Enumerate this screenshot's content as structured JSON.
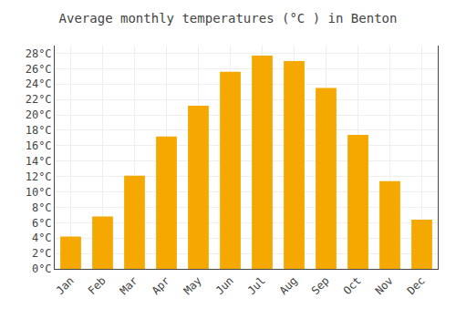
{
  "chart_data": {
    "type": "bar",
    "title": "Average monthly temperatures (°C ) in Benton",
    "categories": [
      "Jan",
      "Feb",
      "Mar",
      "Apr",
      "May",
      "Jun",
      "Jul",
      "Aug",
      "Sep",
      "Oct",
      "Nov",
      "Dec"
    ],
    "values": [
      4.2,
      6.8,
      12.1,
      17.2,
      21.2,
      25.6,
      27.7,
      27.0,
      23.5,
      17.4,
      11.4,
      6.4
    ],
    "color": "#F5A800",
    "ylim": [
      0,
      29
    ],
    "yticks": [
      {
        "value": 0,
        "label": "0°C"
      },
      {
        "value": 2,
        "label": "2°C"
      },
      {
        "value": 4,
        "label": "4°C"
      },
      {
        "value": 6,
        "label": "6°C"
      },
      {
        "value": 8,
        "label": "8°C"
      },
      {
        "value": 10,
        "label": "10°C"
      },
      {
        "value": 12,
        "label": "12°C"
      },
      {
        "value": 14,
        "label": "14°C"
      },
      {
        "value": 16,
        "label": "16°C"
      },
      {
        "value": 18,
        "label": "18°C"
      },
      {
        "value": 20,
        "label": "20°C"
      },
      {
        "value": 22,
        "label": "22°C"
      },
      {
        "value": 24,
        "label": "24°C"
      },
      {
        "value": 26,
        "label": "26°C"
      },
      {
        "value": 28,
        "label": "28°C"
      }
    ],
    "grid": true
  }
}
